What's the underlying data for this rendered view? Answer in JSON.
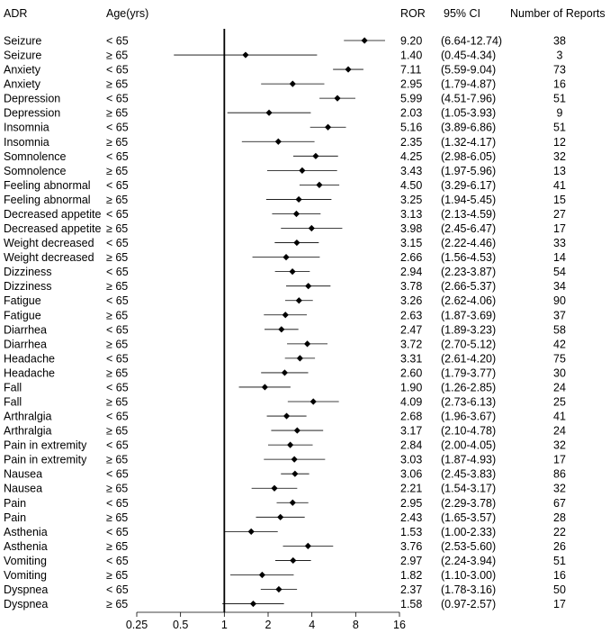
{
  "chart_data": {
    "type": "forest",
    "headers": {
      "adr": "ADR",
      "age": "Age(yrs)",
      "ror": "ROR",
      "ci": "95% CI",
      "reports": "Number of Reports"
    },
    "x_scale": "log2",
    "xlim": [
      0.25,
      16
    ],
    "x_ticks": [
      0.25,
      0.5,
      1,
      2,
      4,
      8,
      16
    ],
    "x_tick_labels": [
      "0.25",
      "0.5",
      "1",
      "2",
      "4",
      "8",
      "16"
    ],
    "reference_line": 1,
    "rows": [
      {
        "adr": "Seizure",
        "age": "< 65",
        "ror": 9.2,
        "lo": 6.64,
        "hi": 12.74,
        "ror_text": "9.20",
        "ci_text": "(6.64-12.74)",
        "reports": "38"
      },
      {
        "adr": "Seizure",
        "age": "≥ 65",
        "ror": 1.4,
        "lo": 0.45,
        "hi": 4.34,
        "ror_text": "1.40",
        "ci_text": "(0.45-4.34)",
        "reports": "3"
      },
      {
        "adr": "Anxiety",
        "age": "< 65",
        "ror": 7.11,
        "lo": 5.59,
        "hi": 9.04,
        "ror_text": "7.11",
        "ci_text": "(5.59-9.04)",
        "reports": "73"
      },
      {
        "adr": "Anxiety",
        "age": "≥ 65",
        "ror": 2.95,
        "lo": 1.79,
        "hi": 4.87,
        "ror_text": "2.95",
        "ci_text": "(1.79-4.87)",
        "reports": "16"
      },
      {
        "adr": "Depression",
        "age": "< 65",
        "ror": 5.99,
        "lo": 4.51,
        "hi": 7.96,
        "ror_text": "5.99",
        "ci_text": "(4.51-7.96)",
        "reports": "51"
      },
      {
        "adr": "Depression",
        "age": "≥ 65",
        "ror": 2.03,
        "lo": 1.05,
        "hi": 3.93,
        "ror_text": "2.03",
        "ci_text": "(1.05-3.93)",
        "reports": "9"
      },
      {
        "adr": "Insomnia",
        "age": "< 65",
        "ror": 5.16,
        "lo": 3.89,
        "hi": 6.86,
        "ror_text": "5.16",
        "ci_text": "(3.89-6.86)",
        "reports": "51"
      },
      {
        "adr": "Insomnia",
        "age": "≥ 65",
        "ror": 2.35,
        "lo": 1.32,
        "hi": 4.17,
        "ror_text": "2.35",
        "ci_text": "(1.32-4.17)",
        "reports": "12"
      },
      {
        "adr": "Somnolence",
        "age": "< 65",
        "ror": 4.25,
        "lo": 2.98,
        "hi": 6.05,
        "ror_text": "4.25",
        "ci_text": "(2.98-6.05)",
        "reports": "32"
      },
      {
        "adr": "Somnolence",
        "age": "≥ 65",
        "ror": 3.43,
        "lo": 1.97,
        "hi": 5.96,
        "ror_text": "3.43",
        "ci_text": "(1.97-5.96)",
        "reports": "13"
      },
      {
        "adr": "Feeling abnormal",
        "age": "< 65",
        "ror": 4.5,
        "lo": 3.29,
        "hi": 6.17,
        "ror_text": "4.50",
        "ci_text": "(3.29-6.17)",
        "reports": "41"
      },
      {
        "adr": "Feeling abnormal",
        "age": "≥ 65",
        "ror": 3.25,
        "lo": 1.94,
        "hi": 5.45,
        "ror_text": "3.25",
        "ci_text": "(1.94-5.45)",
        "reports": "15"
      },
      {
        "adr": "Decreased appetite",
        "age": "< 65",
        "ror": 3.13,
        "lo": 2.13,
        "hi": 4.59,
        "ror_text": "3.13",
        "ci_text": "(2.13-4.59)",
        "reports": "27"
      },
      {
        "adr": "Decreased appetite",
        "age": "≥ 65",
        "ror": 3.98,
        "lo": 2.45,
        "hi": 6.47,
        "ror_text": "3.98",
        "ci_text": "(2.45-6.47)",
        "reports": "17"
      },
      {
        "adr": "Weight decreased",
        "age": "< 65",
        "ror": 3.15,
        "lo": 2.22,
        "hi": 4.46,
        "ror_text": "3.15",
        "ci_text": "(2.22-4.46)",
        "reports": "33"
      },
      {
        "adr": "Weight decreased",
        "age": "≥ 65",
        "ror": 2.66,
        "lo": 1.56,
        "hi": 4.53,
        "ror_text": "2.66",
        "ci_text": "(1.56-4.53)",
        "reports": "14"
      },
      {
        "adr": "Dizziness",
        "age": "< 65",
        "ror": 2.94,
        "lo": 2.23,
        "hi": 3.87,
        "ror_text": "2.94",
        "ci_text": "(2.23-3.87)",
        "reports": "54"
      },
      {
        "adr": "Dizziness",
        "age": "≥ 65",
        "ror": 3.78,
        "lo": 2.66,
        "hi": 5.37,
        "ror_text": "3.78",
        "ci_text": "(2.66-5.37)",
        "reports": "34"
      },
      {
        "adr": "Fatigue",
        "age": "< 65",
        "ror": 3.26,
        "lo": 2.62,
        "hi": 4.06,
        "ror_text": "3.26",
        "ci_text": "(2.62-4.06)",
        "reports": "90"
      },
      {
        "adr": "Fatigue",
        "age": "≥ 65",
        "ror": 2.63,
        "lo": 1.87,
        "hi": 3.69,
        "ror_text": "2.63",
        "ci_text": "(1.87-3.69)",
        "reports": "37"
      },
      {
        "adr": "Diarrhea",
        "age": "< 65",
        "ror": 2.47,
        "lo": 1.89,
        "hi": 3.23,
        "ror_text": "2.47",
        "ci_text": "(1.89-3.23)",
        "reports": "58"
      },
      {
        "adr": "Diarrhea",
        "age": "≥ 65",
        "ror": 3.72,
        "lo": 2.7,
        "hi": 5.12,
        "ror_text": "3.72",
        "ci_text": "(2.70-5.12)",
        "reports": "42"
      },
      {
        "adr": "Headache",
        "age": "< 65",
        "ror": 3.31,
        "lo": 2.61,
        "hi": 4.2,
        "ror_text": "3.31",
        "ci_text": "(2.61-4.20)",
        "reports": "75"
      },
      {
        "adr": "Headache",
        "age": "≥ 65",
        "ror": 2.6,
        "lo": 1.79,
        "hi": 3.77,
        "ror_text": "2.60",
        "ci_text": "(1.79-3.77)",
        "reports": "30"
      },
      {
        "adr": "Fall",
        "age": "< 65",
        "ror": 1.9,
        "lo": 1.26,
        "hi": 2.85,
        "ror_text": "1.90",
        "ci_text": "(1.26-2.85)",
        "reports": "24"
      },
      {
        "adr": "Fall",
        "age": "≥ 65",
        "ror": 4.09,
        "lo": 2.73,
        "hi": 6.13,
        "ror_text": "4.09",
        "ci_text": "(2.73-6.13)",
        "reports": "25"
      },
      {
        "adr": "Arthralgia",
        "age": "< 65",
        "ror": 2.68,
        "lo": 1.96,
        "hi": 3.67,
        "ror_text": "2.68",
        "ci_text": "(1.96-3.67)",
        "reports": "41"
      },
      {
        "adr": "Arthralgia",
        "age": "≥ 65",
        "ror": 3.17,
        "lo": 2.1,
        "hi": 4.78,
        "ror_text": "3.17",
        "ci_text": "(2.10-4.78)",
        "reports": "24"
      },
      {
        "adr": "Pain in extremity",
        "age": "< 65",
        "ror": 2.84,
        "lo": 2.0,
        "hi": 4.05,
        "ror_text": "2.84",
        "ci_text": "(2.00-4.05)",
        "reports": "32"
      },
      {
        "adr": "Pain in extremity",
        "age": "≥ 65",
        "ror": 3.03,
        "lo": 1.87,
        "hi": 4.93,
        "ror_text": "3.03",
        "ci_text": "(1.87-4.93)",
        "reports": "17"
      },
      {
        "adr": "Nausea",
        "age": "< 65",
        "ror": 3.06,
        "lo": 2.45,
        "hi": 3.83,
        "ror_text": "3.06",
        "ci_text": "(2.45-3.83)",
        "reports": "86"
      },
      {
        "adr": "Nausea",
        "age": "≥ 65",
        "ror": 2.21,
        "lo": 1.54,
        "hi": 3.17,
        "ror_text": "2.21",
        "ci_text": "(1.54-3.17)",
        "reports": "32"
      },
      {
        "adr": "Pain",
        "age": "< 65",
        "ror": 2.95,
        "lo": 2.29,
        "hi": 3.78,
        "ror_text": "2.95",
        "ci_text": "(2.29-3.78)",
        "reports": "67"
      },
      {
        "adr": "Pain",
        "age": "≥ 65",
        "ror": 2.43,
        "lo": 1.65,
        "hi": 3.57,
        "ror_text": "2.43",
        "ci_text": "(1.65-3.57)",
        "reports": "28"
      },
      {
        "adr": "Asthenia",
        "age": "< 65",
        "ror": 1.53,
        "lo": 1.0,
        "hi": 2.33,
        "ror_text": "1.53",
        "ci_text": "(1.00-2.33)",
        "reports": "22"
      },
      {
        "adr": "Asthenia",
        "age": "≥ 65",
        "ror": 3.76,
        "lo": 2.53,
        "hi": 5.6,
        "ror_text": "3.76",
        "ci_text": "(2.53-5.60)",
        "reports": "26"
      },
      {
        "adr": "Vomiting",
        "age": "< 65",
        "ror": 2.97,
        "lo": 2.24,
        "hi": 3.94,
        "ror_text": "2.97",
        "ci_text": "(2.24-3.94)",
        "reports": "51"
      },
      {
        "adr": "Vomiting",
        "age": "≥ 65",
        "ror": 1.82,
        "lo": 1.1,
        "hi": 3.0,
        "ror_text": "1.82",
        "ci_text": "(1.10-3.00)",
        "reports": "16"
      },
      {
        "adr": "Dyspnea",
        "age": "< 65",
        "ror": 2.37,
        "lo": 1.78,
        "hi": 3.16,
        "ror_text": "2.37",
        "ci_text": "(1.78-3.16)",
        "reports": "50"
      },
      {
        "adr": "Dyspnea",
        "age": "≥ 65",
        "ror": 1.58,
        "lo": 0.97,
        "hi": 2.57,
        "ror_text": "1.58",
        "ci_text": "(0.97-2.57)",
        "reports": "17"
      }
    ]
  }
}
